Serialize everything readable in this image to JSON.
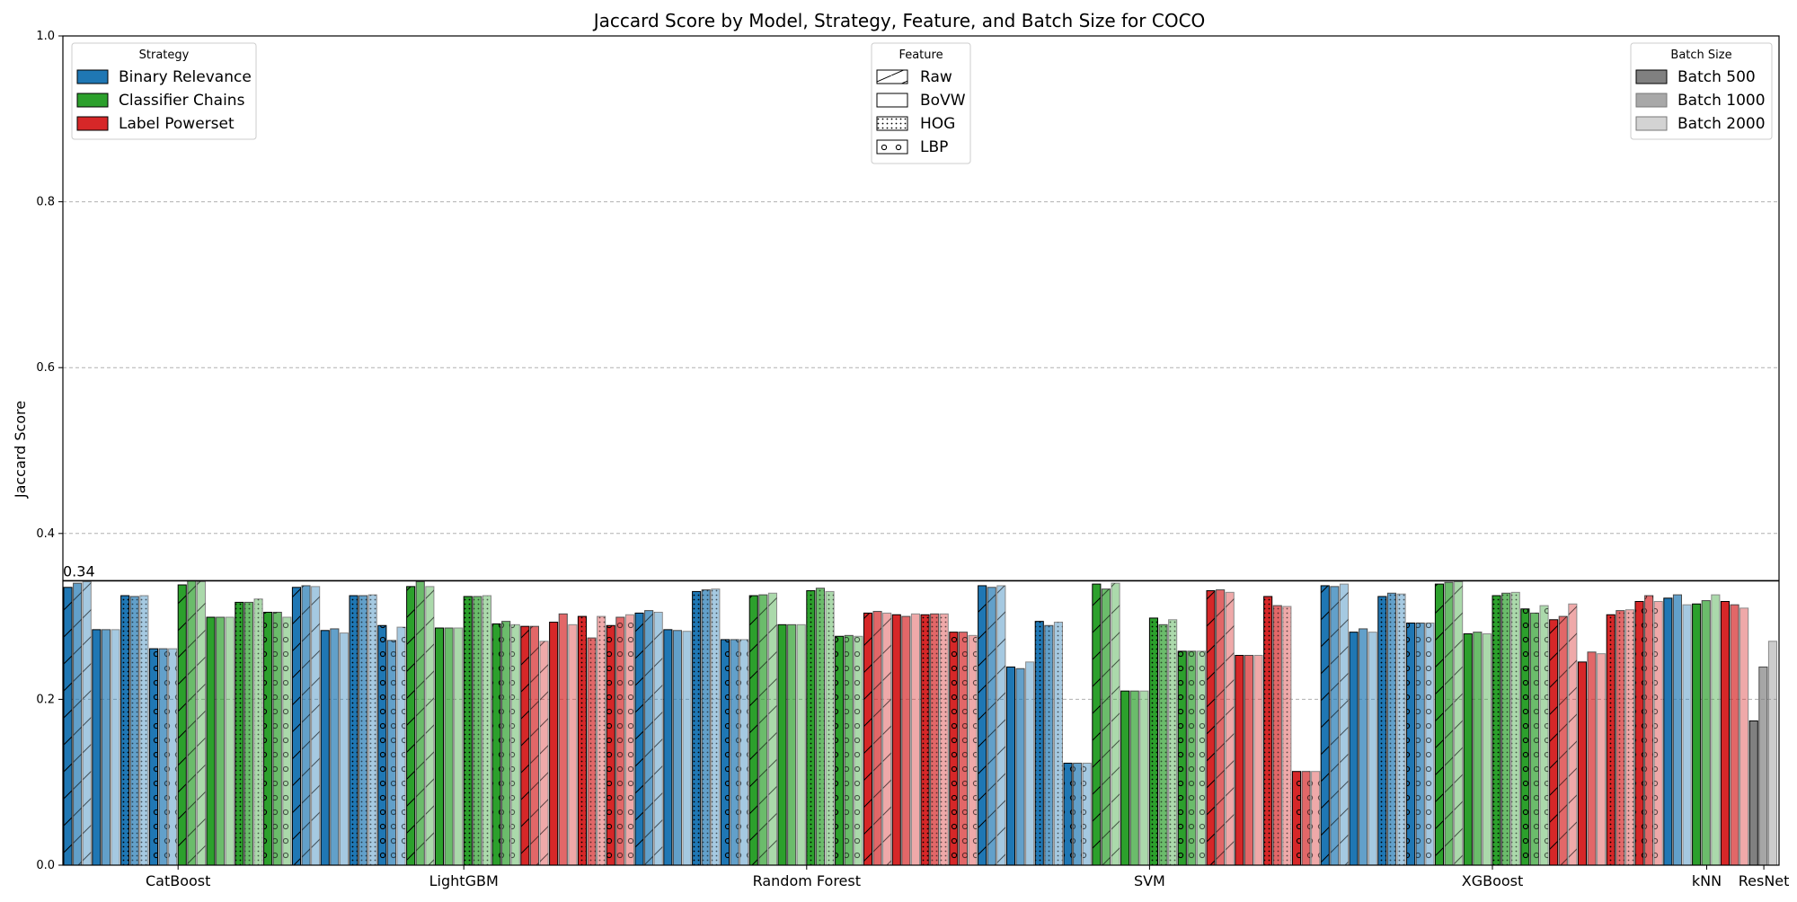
{
  "chart_data": {
    "type": "bar",
    "title": "Jaccard Score by Model, Strategy, Feature, and Batch Size for COCO",
    "ylabel": "Jaccard Score",
    "xlabel": "",
    "ylim": [
      0,
      1.0
    ],
    "yticks": [
      "0.0",
      "0.2",
      "0.4",
      "0.6",
      "0.8",
      "1.0"
    ],
    "grid": "y dashed",
    "reference_line": {
      "value": 0.343,
      "label": "0.34"
    },
    "strategy_legend": {
      "title": "Strategy",
      "placement": "top-left",
      "entries": [
        {
          "name": "Binary Relevance",
          "color": "#1f77b4"
        },
        {
          "name": "Classifier Chains",
          "color": "#2ca02c"
        },
        {
          "name": "Label Powerset",
          "color": "#d62728"
        }
      ]
    },
    "feature_legend": {
      "title": "Feature",
      "placement": "top-center",
      "entries": [
        {
          "name": "Raw",
          "pattern": "diagonal-hatch"
        },
        {
          "name": "BoVW",
          "pattern": "none"
        },
        {
          "name": "HOG",
          "pattern": "dots"
        },
        {
          "name": "LBP",
          "pattern": "circles"
        }
      ]
    },
    "batch_legend": {
      "title": "Batch Size",
      "placement": "top-right",
      "entries": [
        {
          "name": "Batch 500",
          "color": "#808080",
          "alpha": 1.0
        },
        {
          "name": "Batch 1000",
          "color": "#a8a8a8",
          "alpha": 0.7
        },
        {
          "name": "Batch 2000",
          "color": "#d3d3d3",
          "alpha": 0.4
        }
      ]
    },
    "structure_note": "values per model: strategy -> feature (Raw, BoVW, HOG, LBP) -> batch (500, 1000, 2000)",
    "models": [
      {
        "name": "CatBoost",
        "values": {
          "Binary Relevance": {
            "Raw": [
              0.335,
              0.34,
              0.342
            ],
            "BoVW": [
              0.284,
              0.284,
              0.284
            ],
            "HOG": [
              0.325,
              0.324,
              0.325
            ],
            "LBP": [
              0.261,
              0.261,
              0.261
            ]
          },
          "Classifier Chains": {
            "Raw": [
              0.338,
              0.343,
              0.342
            ],
            "BoVW": [
              0.299,
              0.299,
              0.299
            ],
            "HOG": [
              0.317,
              0.317,
              0.321
            ],
            "LBP": [
              0.305,
              0.305,
              0.299
            ]
          },
          "Label Powerset": {}
        }
      },
      {
        "name": "LightGBM",
        "values": {
          "Binary Relevance": {
            "Raw": [
              0.335,
              0.337,
              0.336
            ],
            "BoVW": [
              0.283,
              0.285,
              0.28
            ],
            "HOG": [
              0.325,
              0.325,
              0.326
            ],
            "LBP": [
              0.289,
              0.271,
              0.287
            ]
          },
          "Classifier Chains": {
            "Raw": [
              0.336,
              0.342,
              0.336
            ],
            "BoVW": [
              0.286,
              0.286,
              0.286
            ],
            "HOG": [
              0.324,
              0.324,
              0.325
            ],
            "LBP": [
              0.291,
              0.294,
              0.29
            ]
          },
          "Label Powerset": {
            "Raw": [
              0.288,
              0.288,
              0.27
            ],
            "BoVW": [
              0.293,
              0.303,
              0.29
            ],
            "HOG": [
              0.3,
              0.274,
              0.3
            ],
            "LBP": [
              0.289,
              0.299,
              0.302
            ]
          }
        }
      },
      {
        "name": "Random Forest",
        "values": {
          "Binary Relevance": {
            "Raw": [
              0.304,
              0.307,
              0.305
            ],
            "BoVW": [
              0.284,
              0.283,
              0.282
            ],
            "HOG": [
              0.33,
              0.332,
              0.333
            ],
            "LBP": [
              0.272,
              0.272,
              0.272
            ]
          },
          "Classifier Chains": {
            "Raw": [
              0.325,
              0.326,
              0.328
            ],
            "BoVW": [
              0.29,
              0.29,
              0.29
            ],
            "HOG": [
              0.331,
              0.334,
              0.33
            ],
            "LBP": [
              0.276,
              0.277,
              0.276
            ]
          },
          "Label Powerset": {
            "Raw": [
              0.304,
              0.306,
              0.304
            ],
            "BoVW": [
              0.302,
              0.3,
              0.303
            ],
            "HOG": [
              0.302,
              0.303,
              0.303
            ],
            "LBP": [
              0.281,
              0.281,
              0.277
            ]
          }
        }
      },
      {
        "name": "SVM",
        "values": {
          "Binary Relevance": {
            "Raw": [
              0.337,
              0.335,
              0.337
            ],
            "BoVW": [
              0.239,
              0.237,
              0.245
            ],
            "HOG": [
              0.294,
              0.289,
              0.293
            ],
            "LBP": [
              0.123,
              0.123,
              0.123
            ]
          },
          "Classifier Chains": {
            "Raw": [
              0.339,
              0.333,
              0.34
            ],
            "BoVW": [
              0.21,
              0.21,
              0.21
            ],
            "HOG": [
              0.298,
              0.29,
              0.296
            ],
            "LBP": [
              0.258,
              0.258,
              0.258
            ]
          },
          "Label Powerset": {
            "Raw": [
              0.331,
              0.332,
              0.329
            ],
            "BoVW": [
              0.253,
              0.253,
              0.253
            ],
            "HOG": [
              0.324,
              0.313,
              0.312
            ],
            "LBP": [
              0.113,
              0.113,
              0.113
            ]
          }
        }
      },
      {
        "name": "XGBoost",
        "values": {
          "Binary Relevance": {
            "Raw": [
              0.337,
              0.336,
              0.339
            ],
            "BoVW": [
              0.281,
              0.285,
              0.281
            ],
            "HOG": [
              0.324,
              0.328,
              0.327
            ],
            "LBP": [
              0.292,
              0.292,
              0.292
            ]
          },
          "Classifier Chains": {
            "Raw": [
              0.339,
              0.341,
              0.342
            ],
            "BoVW": [
              0.279,
              0.281,
              0.279
            ],
            "HOG": [
              0.325,
              0.328,
              0.329
            ],
            "LBP": [
              0.309,
              0.304,
              0.313
            ]
          },
          "Label Powerset": {
            "Raw": [
              0.296,
              0.3,
              0.315
            ],
            "BoVW": [
              0.245,
              0.257,
              0.255
            ],
            "HOG": [
              0.302,
              0.307,
              0.308
            ],
            "LBP": [
              0.318,
              0.325,
              0.318
            ]
          }
        }
      },
      {
        "name": "kNN",
        "values": {
          "Binary Relevance": {
            "BoVW": [
              0.322,
              0.326,
              0.314
            ]
          },
          "Classifier Chains": {
            "BoVW": [
              0.315,
              0.319,
              0.326
            ]
          },
          "Label Powerset": {
            "BoVW": [
              0.318,
              0.314,
              0.31
            ]
          }
        }
      },
      {
        "name": "ResNet",
        "values": {
          "None": {
            "BoVW": [
              0.174,
              0.239,
              0.27
            ]
          }
        }
      }
    ]
  }
}
